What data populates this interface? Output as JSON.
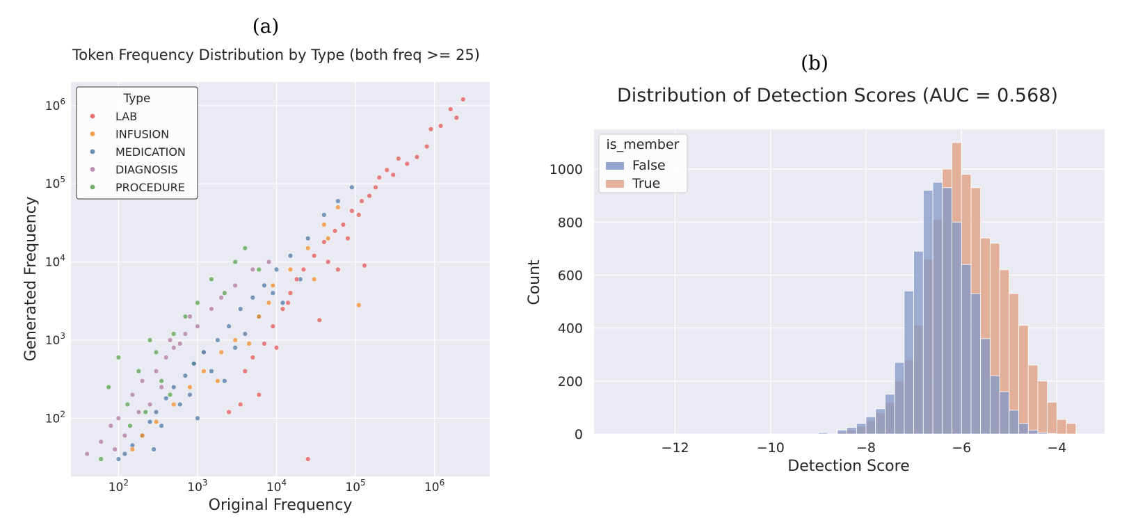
{
  "chart_data": [
    {
      "panel_label": "(a)",
      "type": "scatter",
      "title": "Token Frequency Distribution by Type (both freq >= 25)",
      "xlabel": "Original Frequency",
      "ylabel": "Generated Frequency",
      "xscale": "log",
      "yscale": "log",
      "xlim": [
        25,
        5000000
      ],
      "ylim": [
        18,
        2000000
      ],
      "xticks": [
        {
          "value": 100,
          "base": "10",
          "exp": "2"
        },
        {
          "value": 1000,
          "base": "10",
          "exp": "3"
        },
        {
          "value": 10000,
          "base": "10",
          "exp": "4"
        },
        {
          "value": 100000,
          "base": "10",
          "exp": "5"
        },
        {
          "value": 1000000,
          "base": "10",
          "exp": "6"
        }
      ],
      "yticks": [
        {
          "value": 100,
          "base": "10",
          "exp": "2"
        },
        {
          "value": 1000,
          "base": "10",
          "exp": "3"
        },
        {
          "value": 10000,
          "base": "10",
          "exp": "4"
        },
        {
          "value": 100000,
          "base": "10",
          "exp": "5"
        },
        {
          "value": 1000000,
          "base": "10",
          "exp": "6"
        }
      ],
      "grid": true,
      "legend": {
        "title": "Type",
        "position": "top-left"
      },
      "series": [
        {
          "name": "LAB",
          "color": "#e15759",
          "x": [
            2300000,
            1600000,
            1200000,
            1900000,
            800000,
            600000,
            450000,
            300000,
            250000,
            180000,
            150000,
            120000,
            90000,
            70000,
            55000,
            40000,
            30000,
            22000,
            18000,
            15000,
            12000,
            9000,
            7000,
            5000,
            4000,
            25000,
            60000,
            200000,
            350000,
            900000,
            110000,
            45000,
            80000,
            14000,
            6000,
            3500,
            2500,
            10000,
            35000,
            130000
          ],
          "y": [
            1200000,
            900000,
            550000,
            700000,
            300000,
            220000,
            180000,
            130000,
            150000,
            90000,
            70000,
            60000,
            45000,
            30000,
            25000,
            18000,
            12000,
            8000,
            6000,
            4000,
            2500,
            1500,
            900,
            600,
            400,
            30,
            8000,
            120000,
            210000,
            500000,
            40000,
            10000,
            20000,
            3000,
            200,
            150,
            120,
            800,
            1800,
            9000
          ]
        },
        {
          "name": "INFUSION",
          "color": "#f28e2b",
          "x": [
            110000,
            60000,
            40000,
            25000,
            15000,
            9000,
            6000,
            3000,
            2000,
            1200,
            800,
            500,
            300,
            200,
            150,
            30000,
            45000,
            8000,
            4500,
            1800
          ],
          "y": [
            2800,
            50000,
            30000,
            15000,
            8000,
            5000,
            2000,
            1000,
            700,
            400,
            250,
            150,
            90,
            60,
            40,
            6000,
            20000,
            3000,
            900,
            300
          ]
        },
        {
          "name": "MEDICATION",
          "color": "#4e79a7",
          "x": [
            90000,
            60000,
            40000,
            25000,
            15000,
            10000,
            7000,
            5000,
            3500,
            2500,
            1800,
            1200,
            900,
            700,
            500,
            400,
            300,
            250,
            200,
            150,
            120,
            100,
            3000,
            6000,
            12000,
            20000,
            1500,
            800,
            600,
            2200,
            4000,
            9000,
            1000,
            350,
            280
          ],
          "y": [
            90000,
            60000,
            40000,
            20000,
            12000,
            8000,
            5000,
            3500,
            2500,
            1500,
            1000,
            700,
            500,
            350,
            250,
            180,
            120,
            90,
            60,
            45,
            35,
            30,
            800,
            2000,
            3000,
            6000,
            400,
            200,
            150,
            300,
            1200,
            4000,
            100,
            80,
            40
          ]
        },
        {
          "name": "DIAGNOSIS",
          "color": "#b07aa1",
          "x": [
            40,
            60,
            80,
            100,
            150,
            200,
            300,
            400,
            500,
            700,
            1000,
            1500,
            2000,
            3000,
            5000,
            8000,
            250,
            180,
            120,
            90,
            600,
            800,
            1200,
            350,
            450
          ],
          "y": [
            35,
            50,
            80,
            100,
            200,
            300,
            400,
            600,
            800,
            1200,
            1500,
            2500,
            3500,
            5000,
            8000,
            10000,
            150,
            120,
            60,
            40,
            900,
            2000,
            700,
            250,
            1000
          ]
        },
        {
          "name": "PROCEDURE",
          "color": "#59a14f",
          "x": [
            60,
            75,
            100,
            130,
            180,
            250,
            350,
            500,
            700,
            1000,
            1500,
            2200,
            3000,
            4000,
            6000,
            140,
            220,
            300,
            450,
            900
          ],
          "y": [
            30,
            250,
            600,
            150,
            400,
            1000,
            300,
            1200,
            2000,
            3000,
            6000,
            4000,
            10000,
            15000,
            8000,
            80,
            120,
            700,
            200,
            500
          ]
        }
      ]
    },
    {
      "panel_label": "(b)",
      "type": "bar",
      "title": "Distribution of Detection Scores (AUC = 0.568)",
      "xlabel": "Detection Score",
      "ylabel": "Count",
      "xlim": [
        -13.7,
        -3.0
      ],
      "ylim": [
        0,
        1150
      ],
      "xticks": [
        {
          "value": -12,
          "label": "−12"
        },
        {
          "value": -10,
          "label": "−10"
        },
        {
          "value": -8,
          "label": "−8"
        },
        {
          "value": -6,
          "label": "−6"
        },
        {
          "value": -4,
          "label": "−4"
        }
      ],
      "yticks": [
        0,
        200,
        400,
        600,
        800,
        1000
      ],
      "grid": true,
      "bin_width": 0.2,
      "bin_edges_start": -9.0,
      "legend": {
        "title": "is_member",
        "position": "top-left"
      },
      "series": [
        {
          "name": "False",
          "color": "#8197c8",
          "values": [
            5,
            0,
            15,
            25,
            40,
            65,
            95,
            150,
            270,
            540,
            690,
            920,
            950,
            930,
            800,
            640,
            530,
            360,
            220,
            160,
            90,
            40,
            15,
            5,
            2,
            0,
            0
          ]
        },
        {
          "name": "True",
          "color": "#e0a58a",
          "values": [
            0,
            0,
            8,
            15,
            30,
            50,
            80,
            120,
            200,
            280,
            410,
            660,
            810,
            1000,
            1100,
            980,
            930,
            740,
            720,
            620,
            530,
            410,
            260,
            200,
            120,
            55,
            40
          ]
        }
      ]
    }
  ]
}
